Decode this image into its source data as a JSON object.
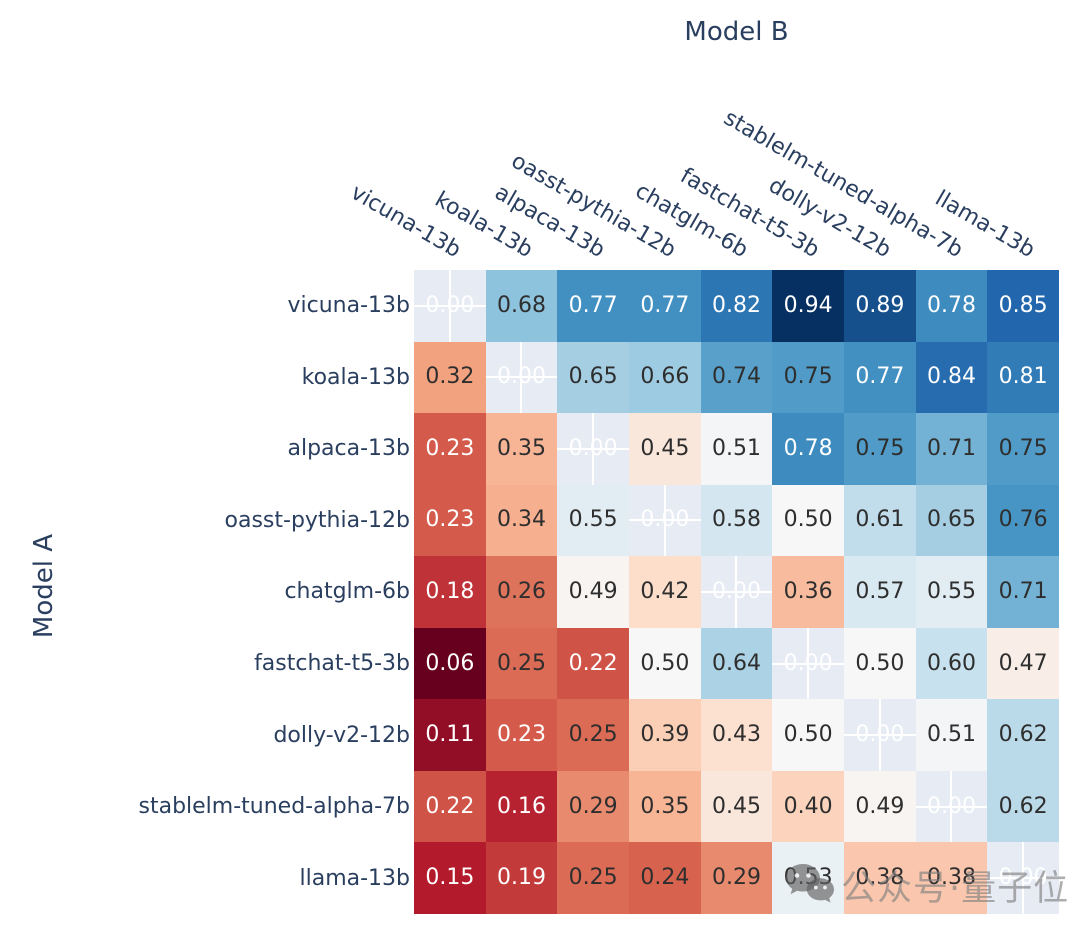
{
  "figure": {
    "x_axis_title": "Model B",
    "y_axis_title": "Model A"
  },
  "chart_data": {
    "type": "heatmap",
    "xlabel": "Model B",
    "ylabel": "Model A",
    "x_categories": [
      "vicuna-13b",
      "koala-13b",
      "alpaca-13b",
      "oasst-pythia-12b",
      "chatglm-6b",
      "fastchat-t5-3b",
      "dolly-v2-12b",
      "stablelm-tuned-alpha-7b",
      "llama-13b"
    ],
    "y_categories": [
      "vicuna-13b",
      "koala-13b",
      "alpaca-13b",
      "oasst-pythia-12b",
      "chatglm-6b",
      "fastchat-t5-3b",
      "dolly-v2-12b",
      "stablelm-tuned-alpha-7b",
      "llama-13b"
    ],
    "matrix": [
      [
        0.0,
        0.68,
        0.77,
        0.77,
        0.82,
        0.94,
        0.89,
        0.78,
        0.85
      ],
      [
        0.32,
        0.0,
        0.65,
        0.66,
        0.74,
        0.75,
        0.77,
        0.84,
        0.81
      ],
      [
        0.23,
        0.35,
        0.0,
        0.45,
        0.51,
        0.78,
        0.75,
        0.71,
        0.75
      ],
      [
        0.23,
        0.34,
        0.55,
        0.0,
        0.58,
        0.5,
        0.61,
        0.65,
        0.76
      ],
      [
        0.18,
        0.26,
        0.49,
        0.42,
        0.0,
        0.36,
        0.57,
        0.55,
        0.71
      ],
      [
        0.06,
        0.25,
        0.22,
        0.5,
        0.64,
        0.0,
        0.5,
        0.6,
        0.47
      ],
      [
        0.11,
        0.23,
        0.25,
        0.39,
        0.43,
        0.5,
        0.0,
        0.51,
        0.62
      ],
      [
        0.22,
        0.16,
        0.29,
        0.35,
        0.45,
        0.4,
        0.49,
        0.0,
        0.62
      ],
      [
        0.15,
        0.19,
        0.25,
        0.24,
        0.29,
        0.53,
        0.38,
        0.38,
        0.0
      ]
    ],
    "value_format": "two-decimals",
    "diagonal": {
      "masked": true,
      "display_value": "0.00"
    },
    "colorscale": {
      "name": "RdBu",
      "zmin": 0.06,
      "zmax": 0.94,
      "stops": [
        {
          "pos": 0.0,
          "color": "#67001f"
        },
        {
          "pos": 0.1,
          "color": "#b2182b"
        },
        {
          "pos": 0.2,
          "color": "#d6604d"
        },
        {
          "pos": 0.3,
          "color": "#f4a582"
        },
        {
          "pos": 0.4,
          "color": "#fddbc7"
        },
        {
          "pos": 0.5,
          "color": "#f7f7f7"
        },
        {
          "pos": 0.6,
          "color": "#d1e5f0"
        },
        {
          "pos": 0.7,
          "color": "#92c5de"
        },
        {
          "pos": 0.8,
          "color": "#4393c3"
        },
        {
          "pos": 0.9,
          "color": "#2166ac"
        },
        {
          "pos": 1.0,
          "color": "#053061"
        }
      ]
    },
    "legend": "none",
    "grid_on": false
  },
  "watermark": {
    "icon": "wechat-icon",
    "text": "公众号·量子位"
  },
  "colors": {
    "axis_text": "#2a3f5f",
    "cell_text_dark": "#2e2e2e",
    "cell_text_light": "#ffffff",
    "diagonal_bg": "#e6ebf4",
    "gridline": "#ffffff",
    "background": "#ffffff"
  }
}
